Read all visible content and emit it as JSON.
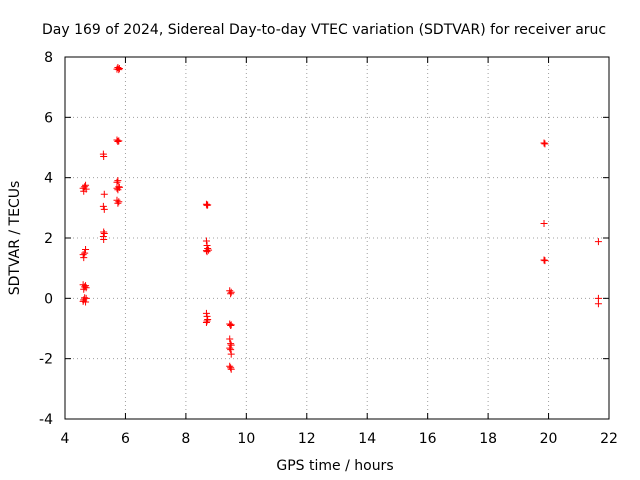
{
  "chart_data": {
    "type": "scatter",
    "title": "Day 169 of 2024, Sidereal Day-to-day VTEC variation (SDTVAR) for receiver aruc",
    "xlabel": "GPS time / hours",
    "ylabel": "SDTVAR / TECUs",
    "xlim": [
      4,
      22
    ],
    "ylim": [
      -4,
      8
    ],
    "xticks": [
      "4",
      "6",
      "8",
      "10",
      "12",
      "14",
      "16",
      "18",
      "20",
      "22"
    ],
    "yticks": [
      "-4",
      "-2",
      "0",
      "2",
      "4",
      "6",
      "8"
    ],
    "grid": true,
    "marker": "+",
    "color": "#ff0000",
    "series": [
      {
        "name": "SDTVAR",
        "points": [
          [
            4.6,
            3.65
          ],
          [
            4.62,
            3.55
          ],
          [
            4.65,
            3.7
          ],
          [
            4.68,
            3.75
          ],
          [
            4.7,
            3.62
          ],
          [
            4.6,
            1.45
          ],
          [
            4.62,
            1.35
          ],
          [
            4.65,
            1.5
          ],
          [
            4.68,
            1.62
          ],
          [
            4.6,
            0.45
          ],
          [
            4.62,
            0.3
          ],
          [
            4.65,
            0.38
          ],
          [
            4.68,
            0.42
          ],
          [
            4.7,
            0.35
          ],
          [
            4.6,
            -0.1
          ],
          [
            4.62,
            -0.05
          ],
          [
            4.65,
            0.02
          ],
          [
            4.68,
            -0.12
          ],
          [
            4.7,
            0.0
          ],
          [
            5.27,
            4.78
          ],
          [
            5.28,
            4.7
          ],
          [
            5.3,
            3.45
          ],
          [
            5.27,
            3.05
          ],
          [
            5.3,
            2.95
          ],
          [
            5.28,
            2.2
          ],
          [
            5.3,
            2.15
          ],
          [
            5.27,
            2.05
          ],
          [
            5.28,
            1.95
          ],
          [
            5.72,
            7.6
          ],
          [
            5.75,
            7.65
          ],
          [
            5.78,
            7.58
          ],
          [
            5.8,
            7.62
          ],
          [
            5.72,
            5.25
          ],
          [
            5.75,
            5.2
          ],
          [
            5.78,
            5.22
          ],
          [
            5.72,
            3.85
          ],
          [
            5.75,
            3.9
          ],
          [
            5.78,
            3.7
          ],
          [
            5.72,
            3.65
          ],
          [
            5.75,
            3.6
          ],
          [
            5.8,
            3.68
          ],
          [
            5.72,
            3.25
          ],
          [
            5.75,
            3.15
          ],
          [
            5.78,
            3.2
          ],
          [
            8.68,
            3.12
          ],
          [
            8.7,
            3.08
          ],
          [
            8.72,
            3.1
          ],
          [
            8.68,
            1.9
          ],
          [
            8.7,
            1.75
          ],
          [
            8.72,
            1.65
          ],
          [
            8.68,
            1.58
          ],
          [
            8.7,
            1.55
          ],
          [
            8.75,
            1.6
          ],
          [
            8.68,
            -0.5
          ],
          [
            8.7,
            -0.6
          ],
          [
            8.72,
            -0.7
          ],
          [
            8.68,
            -0.8
          ],
          [
            8.7,
            -0.75
          ],
          [
            9.45,
            0.25
          ],
          [
            9.48,
            0.15
          ],
          [
            9.5,
            0.2
          ],
          [
            9.45,
            -0.85
          ],
          [
            9.48,
            -0.9
          ],
          [
            9.5,
            -0.88
          ],
          [
            9.45,
            -1.35
          ],
          [
            9.48,
            -1.5
          ],
          [
            9.5,
            -1.55
          ],
          [
            9.45,
            -1.65
          ],
          [
            9.48,
            -1.7
          ],
          [
            9.5,
            -1.85
          ],
          [
            9.45,
            -2.25
          ],
          [
            9.48,
            -2.3
          ],
          [
            9.5,
            -2.35
          ],
          [
            19.85,
            5.15
          ],
          [
            19.88,
            5.12
          ],
          [
            19.85,
            2.48
          ],
          [
            19.85,
            1.27
          ],
          [
            19.88,
            1.25
          ],
          [
            21.65,
            1.88
          ],
          [
            21.65,
            0.0
          ],
          [
            21.65,
            -0.18
          ]
        ]
      }
    ]
  }
}
